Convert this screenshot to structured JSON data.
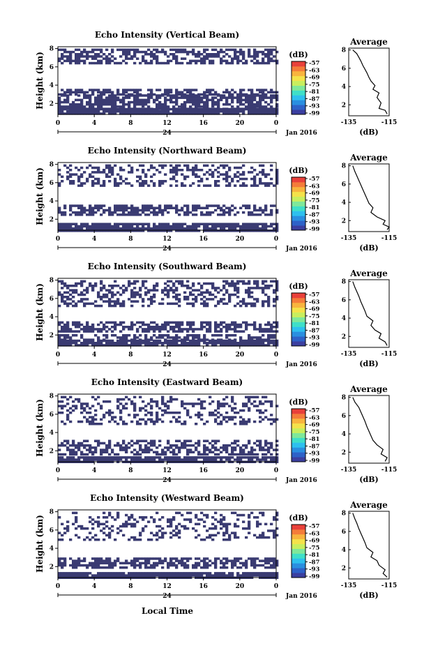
{
  "figure": {
    "xlabel": "Local Time",
    "date_label": "Jan 2016",
    "day_marker": "24",
    "colors": {
      "echo": "#3a3b72",
      "background": "#ffffff",
      "colorbar": [
        "#3b3fa0",
        "#2e62c8",
        "#2a8fe0",
        "#2ec0ee",
        "#3fdfc8",
        "#7fe89a",
        "#c8ee5e",
        "#f4e24a",
        "#f8b43e",
        "#f47c3a",
        "#e8403a"
      ]
    }
  },
  "chart_data": [
    {
      "type": "heatmap",
      "title": "Echo Intensity (Vertical Beam)",
      "ylabel": "Height (km)",
      "xticks": [
        "0",
        "4",
        "8",
        "12",
        "16",
        "20",
        "0"
      ],
      "yticks": [
        "2",
        "4",
        "6",
        "8"
      ],
      "xlim": [
        0,
        24
      ],
      "ylim": [
        0.8,
        8.2
      ],
      "colorbar": {
        "label": "(dB)",
        "ticks": [
          "-57",
          "-63",
          "-69",
          "-75",
          "-81",
          "-87",
          "-93",
          "-99"
        ]
      },
      "bands": [
        [
          0.8,
          1.5,
          0.95
        ],
        [
          1.5,
          3.0,
          0.72
        ],
        [
          3.0,
          3.6,
          0.6
        ],
        [
          6.4,
          8.0,
          0.55
        ]
      ],
      "profile": {
        "title": "Average",
        "xlabel": "(dB)",
        "xticks": [
          "-135",
          "-115"
        ],
        "yticks": [
          "2",
          "4",
          "6",
          "8"
        ],
        "x": [
          -116,
          -117,
          -120,
          -119,
          -121,
          -120,
          -123,
          -122,
          -124,
          -125,
          -126,
          -127,
          -128,
          -129,
          -130,
          -131,
          -133
        ],
        "y": [
          1.0,
          1.4,
          1.6,
          2.2,
          2.8,
          3.3,
          3.7,
          4.1,
          4.6,
          5.0,
          5.5,
          5.9,
          6.3,
          6.8,
          7.2,
          7.6,
          8.0
        ]
      }
    },
    {
      "type": "heatmap",
      "title": "Echo Intensity (Northward Beam)",
      "ylabel": "Height (km)",
      "xticks": [
        "0",
        "4",
        "8",
        "12",
        "16",
        "20",
        "0"
      ],
      "yticks": [
        "2",
        "4",
        "6",
        "8"
      ],
      "xlim": [
        0,
        24
      ],
      "ylim": [
        0.8,
        8.2
      ],
      "colorbar": {
        "label": "(dB)",
        "ticks": [
          "-57",
          "-63",
          "-69",
          "-75",
          "-81",
          "-87",
          "-93",
          "-99"
        ]
      },
      "bands": [
        [
          0.8,
          1.6,
          0.9
        ],
        [
          2.4,
          3.6,
          0.62
        ],
        [
          5.6,
          8.0,
          0.4
        ]
      ],
      "profile": {
        "title": "Average",
        "xlabel": "(dB)",
        "xticks": [
          "-135",
          "-115"
        ],
        "yticks": [
          "2",
          "4",
          "6",
          "8"
        ],
        "x": [
          -116,
          -115,
          -118,
          -117,
          -121,
          -124,
          -123,
          -125,
          -126,
          -127,
          -128,
          -129,
          -130,
          -131,
          -132,
          -133
        ],
        "y": [
          1.0,
          1.3,
          1.6,
          2.0,
          2.4,
          2.9,
          3.4,
          3.9,
          4.4,
          4.9,
          5.4,
          5.9,
          6.4,
          6.9,
          7.4,
          8.0
        ]
      }
    },
    {
      "type": "heatmap",
      "title": "Echo Intensity (Southward Beam)",
      "ylabel": "Height (km)",
      "xticks": [
        "0",
        "4",
        "8",
        "12",
        "16",
        "20",
        "0"
      ],
      "yticks": [
        "2",
        "4",
        "6",
        "8"
      ],
      "xlim": [
        0,
        24
      ],
      "ylim": [
        0.8,
        8.2
      ],
      "colorbar": {
        "label": "(dB)",
        "ticks": [
          "-57",
          "-63",
          "-69",
          "-75",
          "-81",
          "-87",
          "-93",
          "-99"
        ]
      },
      "bands": [
        [
          0.8,
          1.5,
          0.9
        ],
        [
          1.5,
          2.1,
          0.55
        ],
        [
          2.4,
          3.5,
          0.6
        ],
        [
          5.2,
          8.0,
          0.42
        ]
      ],
      "profile": {
        "title": "Average",
        "xlabel": "(dB)",
        "xticks": [
          "-135",
          "-115"
        ],
        "yticks": [
          "2",
          "4",
          "6",
          "8"
        ],
        "x": [
          -116,
          -117,
          -120,
          -119,
          -122,
          -124,
          -123,
          -126,
          -127,
          -128,
          -129,
          -130,
          -131,
          -132,
          -133
        ],
        "y": [
          1.0,
          1.4,
          1.8,
          2.3,
          2.7,
          3.2,
          3.7,
          4.2,
          4.8,
          5.3,
          5.8,
          6.4,
          6.9,
          7.4,
          8.0
        ]
      }
    },
    {
      "type": "heatmap",
      "title": "Echo Intensity (Eastward Beam)",
      "ylabel": "Height (km)",
      "xticks": [
        "0",
        "4",
        "8",
        "12",
        "16",
        "20",
        "0"
      ],
      "yticks": [
        "2",
        "4",
        "6",
        "8"
      ],
      "xlim": [
        0,
        24
      ],
      "ylim": [
        0.8,
        8.2
      ],
      "colorbar": {
        "label": "(dB)",
        "ticks": [
          "-57",
          "-63",
          "-69",
          "-75",
          "-81",
          "-87",
          "-93",
          "-99"
        ]
      },
      "bands": [
        [
          0.8,
          1.4,
          0.85
        ],
        [
          1.6,
          3.2,
          0.5
        ],
        [
          5.0,
          8.0,
          0.3
        ]
      ],
      "profile": {
        "title": "Average",
        "xlabel": "(dB)",
        "xticks": [
          "-135",
          "-115"
        ],
        "yticks": [
          "2",
          "4",
          "6",
          "8"
        ],
        "x": [
          -117,
          -116,
          -119,
          -118,
          -121,
          -123,
          -124,
          -125,
          -126,
          -127,
          -128,
          -129,
          -130,
          -132,
          -133
        ],
        "y": [
          1.0,
          1.4,
          1.8,
          2.3,
          2.8,
          3.3,
          3.8,
          4.3,
          4.8,
          5.4,
          5.9,
          6.4,
          6.9,
          7.5,
          8.0
        ]
      }
    },
    {
      "type": "heatmap",
      "title": "Echo Intensity (Westward Beam)",
      "ylabel": "Height (km)",
      "xticks": [
        "0",
        "4",
        "8",
        "12",
        "16",
        "20",
        "0"
      ],
      "yticks": [
        "2",
        "4",
        "6",
        "8"
      ],
      "xlim": [
        0,
        24
      ],
      "ylim": [
        0.8,
        8.2
      ],
      "colorbar": {
        "label": "(dB)",
        "ticks": [
          "-57",
          "-63",
          "-69",
          "-75",
          "-81",
          "-87",
          "-93",
          "-99"
        ]
      },
      "bands": [
        [
          0.8,
          1.4,
          0.9
        ],
        [
          1.9,
          3.0,
          0.6
        ],
        [
          5.0,
          8.0,
          0.3
        ]
      ],
      "profile": {
        "title": "Average",
        "xlabel": "(dB)",
        "xticks": [
          "-135",
          "-115"
        ],
        "yticks": [
          "2",
          "4",
          "6",
          "8"
        ],
        "x": [
          -116,
          -118,
          -117,
          -120,
          -121,
          -124,
          -123,
          -126,
          -127,
          -128,
          -129,
          -130,
          -131,
          -132,
          -133
        ],
        "y": [
          1.0,
          1.4,
          1.8,
          2.3,
          2.8,
          3.2,
          3.7,
          4.2,
          4.8,
          5.3,
          5.8,
          6.3,
          6.9,
          7.4,
          8.0
        ]
      }
    }
  ]
}
